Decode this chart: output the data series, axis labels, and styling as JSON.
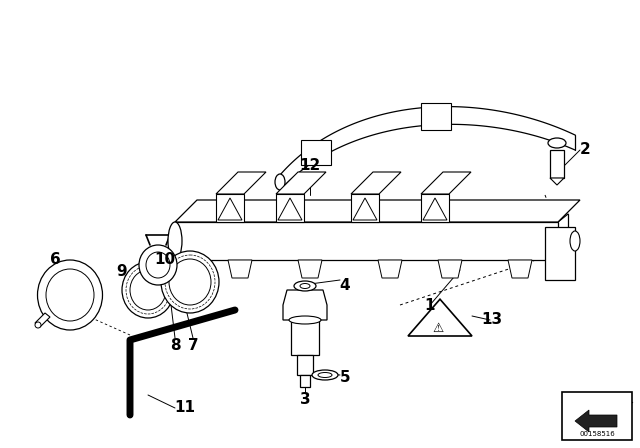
{
  "bg_color": "#ffffff",
  "line_color": "#000000",
  "fig_width": 6.4,
  "fig_height": 4.48,
  "dpi": 100,
  "diagram_number": "00158516"
}
